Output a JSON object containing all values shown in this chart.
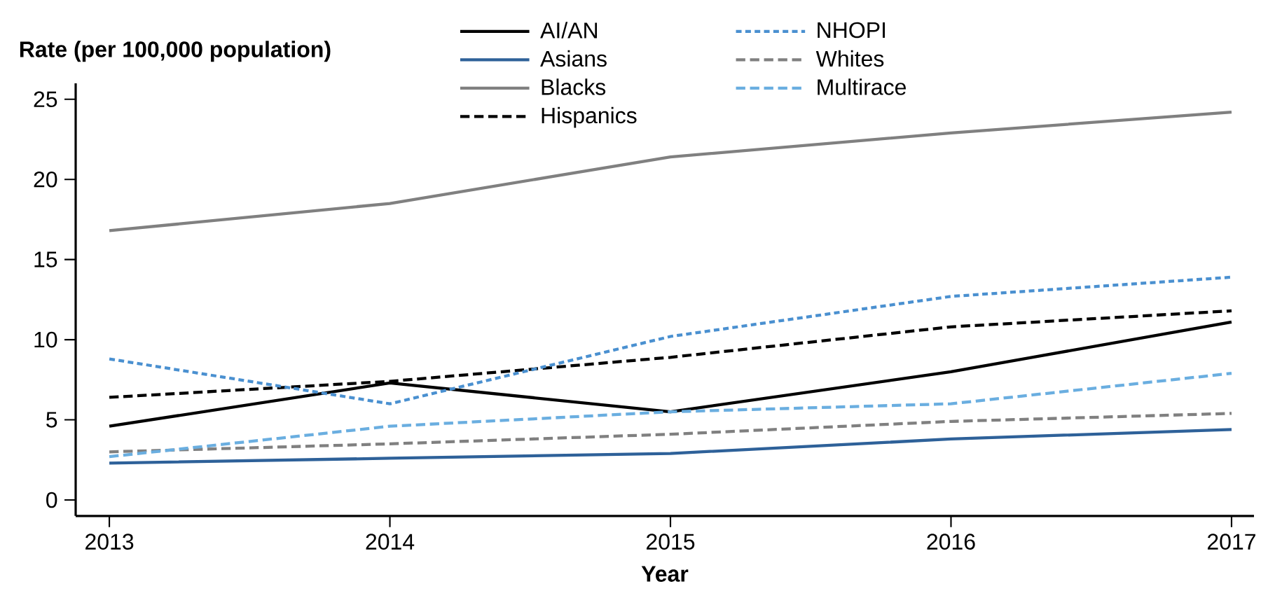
{
  "chart_data": {
    "type": "line",
    "xlabel": "Year",
    "ylabel": "Rate (per 100,000 population)",
    "x": [
      2013,
      2014,
      2015,
      2016,
      2017
    ],
    "xlim": [
      2012.88,
      2017.08
    ],
    "xticks": [
      2013,
      2014,
      2015,
      2016,
      2017
    ],
    "ylim": [
      -1,
      26
    ],
    "yticks": [
      0,
      5,
      10,
      15,
      20,
      25
    ],
    "grid": false,
    "legend": "top",
    "marker": "none",
    "series": [
      {
        "name": "AI/AN",
        "color": "#000000",
        "line_style": "solid",
        "values": [
          4.6,
          7.3,
          5.5,
          8.0,
          11.1
        ]
      },
      {
        "name": "Asians",
        "color": "#2e6199",
        "line_style": "solid",
        "values": [
          2.3,
          2.6,
          2.9,
          3.8,
          4.4
        ]
      },
      {
        "name": "Blacks",
        "color": "#808080",
        "line_style": "solid",
        "values": [
          16.8,
          18.5,
          21.4,
          22.9,
          24.2
        ]
      },
      {
        "name": "Hispanics",
        "color": "#000000",
        "line_style": "dashed",
        "values": [
          6.4,
          7.4,
          8.9,
          10.8,
          11.8
        ]
      },
      {
        "name": "NHOPI",
        "color": "#4a90d0",
        "line_style": "dotted",
        "values": [
          8.8,
          6.0,
          10.2,
          12.7,
          13.9
        ]
      },
      {
        "name": "Whites",
        "color": "#808080",
        "line_style": "dashed",
        "values": [
          3.0,
          3.5,
          4.1,
          4.9,
          5.4
        ]
      },
      {
        "name": "Multirace",
        "color": "#6aaee0",
        "line_style": "dashed",
        "values": [
          2.7,
          4.6,
          5.5,
          6.0,
          7.9
        ]
      }
    ]
  }
}
